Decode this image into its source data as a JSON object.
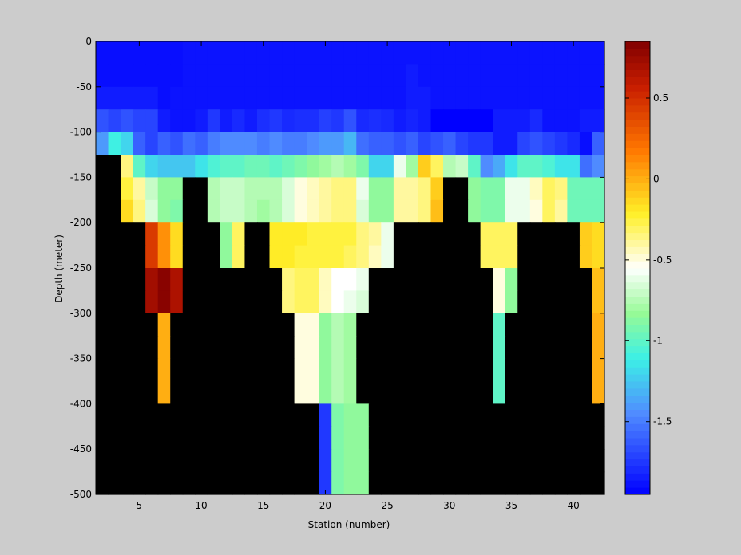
{
  "chart_data": {
    "type": "heatmap",
    "title": "",
    "xlabel": "Station (number)",
    "ylabel": "Depth (meter)",
    "xlim": [
      1.5,
      42.5
    ],
    "ylim": [
      -500,
      0
    ],
    "x_ticks": [
      5,
      10,
      15,
      20,
      25,
      30,
      35,
      40
    ],
    "y_ticks": [
      0,
      -50,
      -100,
      -150,
      -200,
      -250,
      -300,
      -350,
      -400,
      -450,
      -500
    ],
    "colorbar": {
      "range": [
        -1.95,
        0.85
      ],
      "ticks": [
        0.5,
        0,
        -0.5,
        -1,
        -1.5
      ],
      "colormap": "jet-white"
    },
    "missing_color": "#000000",
    "stations": [
      2,
      3,
      4,
      5,
      6,
      7,
      8,
      9,
      10,
      11,
      12,
      13,
      14,
      15,
      16,
      17,
      18,
      19,
      20,
      21,
      22,
      23,
      24,
      25,
      26,
      27,
      28,
      29,
      30,
      31,
      32,
      33,
      34,
      35,
      36,
      37,
      38,
      39,
      40,
      41,
      42
    ],
    "depths": [
      -12.5,
      -37.5,
      -62.5,
      -87.5,
      -112.5,
      -137.5,
      -162.5,
      -187.5,
      -212.5,
      -237.5,
      -262.5,
      -287.5,
      -312.5,
      -337.5,
      -362.5,
      -387.5,
      -412.5,
      -437.5,
      -462.5,
      -487.5
    ],
    "values": [
      [
        -1.9,
        -1.9,
        -1.9,
        -1.9,
        -1.9,
        -1.9,
        -1.9,
        -1.88,
        -1.88,
        -1.88,
        -1.88,
        -1.88,
        -1.88,
        -1.88,
        -1.88,
        -1.88,
        -1.88,
        -1.88,
        -1.88,
        -1.88,
        -1.88,
        -1.88,
        -1.88,
        -1.88,
        -1.88,
        -1.88,
        -1.88,
        -1.88,
        -1.88,
        -1.88,
        -1.88,
        -1.88,
        -1.88,
        -1.88,
        -1.88,
        -1.88,
        -1.88,
        -1.88,
        -1.88,
        -1.88,
        -1.88
      ],
      [
        -1.9,
        -1.9,
        -1.9,
        -1.9,
        -1.9,
        -1.9,
        -1.9,
        -1.88,
        -1.88,
        -1.88,
        -1.88,
        -1.88,
        -1.88,
        -1.88,
        -1.88,
        -1.88,
        -1.88,
        -1.88,
        -1.88,
        -1.88,
        -1.88,
        -1.88,
        -1.88,
        -1.88,
        -1.88,
        -1.85,
        -1.88,
        -1.88,
        -1.88,
        -1.88,
        -1.88,
        -1.88,
        -1.88,
        -1.88,
        -1.88,
        -1.88,
        -1.88,
        -1.88,
        -1.88,
        -1.88,
        -1.88
      ],
      [
        -1.85,
        -1.85,
        -1.85,
        -1.85,
        -1.85,
        -1.9,
        -1.88,
        -1.88,
        -1.88,
        -1.88,
        -1.88,
        -1.88,
        -1.88,
        -1.88,
        -1.88,
        -1.88,
        -1.88,
        -1.88,
        -1.88,
        -1.88,
        -1.88,
        -1.88,
        -1.88,
        -1.88,
        -1.88,
        -1.85,
        -1.85,
        -1.88,
        -1.88,
        -1.88,
        -1.88,
        -1.88,
        -1.88,
        -1.88,
        -1.88,
        -1.88,
        -1.88,
        -1.88,
        -1.88,
        -1.88,
        -1.88
      ],
      [
        -1.65,
        -1.7,
        -1.65,
        -1.7,
        -1.7,
        -1.85,
        -1.88,
        -1.88,
        -1.85,
        -1.75,
        -1.85,
        -1.8,
        -1.85,
        -1.78,
        -1.75,
        -1.8,
        -1.78,
        -1.78,
        -1.72,
        -1.75,
        -1.65,
        -1.8,
        -1.78,
        -1.8,
        -1.85,
        -1.82,
        -1.85,
        -1.95,
        -1.95,
        -1.95,
        -1.95,
        -1.95,
        -1.85,
        -1.85,
        -1.85,
        -1.8,
        -1.88,
        -1.88,
        -1.88,
        -1.85,
        -1.85
      ],
      [
        -1.4,
        -1.1,
        -1.2,
        -1.6,
        -1.7,
        -1.6,
        -1.65,
        -1.55,
        -1.6,
        -1.5,
        -1.45,
        -1.45,
        -1.45,
        -1.5,
        -1.45,
        -1.5,
        -1.5,
        -1.45,
        -1.4,
        -1.4,
        -1.3,
        -1.55,
        -1.6,
        -1.6,
        -1.65,
        -1.6,
        -1.7,
        -1.65,
        -1.6,
        -1.7,
        -1.75,
        -1.75,
        -1.85,
        -1.85,
        -1.7,
        -1.65,
        -1.7,
        -1.75,
        -1.8,
        -1.9,
        -1.6
      ],
      [
        null,
        null,
        -0.35,
        -1.0,
        -1.2,
        -1.25,
        -1.25,
        -1.25,
        -1.15,
        -1.05,
        -1.0,
        -1.0,
        -0.95,
        -0.95,
        -1.0,
        -0.95,
        -0.9,
        -0.85,
        -0.8,
        -0.75,
        -0.8,
        -0.9,
        -1.2,
        -1.2,
        -0.6,
        -0.8,
        -0.1,
        -0.3,
        -0.75,
        -0.7,
        -1.0,
        -1.45,
        -1.35,
        -1.15,
        -1.0,
        -1.0,
        -1.05,
        -1.15,
        -1.15,
        -1.55,
        -1.45
      ],
      [
        null,
        null,
        -0.25,
        -0.4,
        -0.7,
        -0.85,
        -0.85,
        null,
        null,
        -0.75,
        -0.7,
        -0.7,
        -0.75,
        -0.75,
        -0.75,
        -0.65,
        -0.5,
        -0.45,
        -0.4,
        -0.35,
        -0.35,
        -0.6,
        -0.85,
        -0.85,
        -0.4,
        -0.4,
        -0.35,
        -0.1,
        null,
        null,
        -0.85,
        -0.9,
        -0.9,
        -0.6,
        -0.6,
        -0.45,
        -0.3,
        -0.35,
        -0.95,
        -0.95,
        -0.95
      ],
      [
        null,
        null,
        -0.15,
        -0.35,
        -0.65,
        -0.85,
        -0.9,
        null,
        null,
        -0.75,
        -0.7,
        -0.7,
        -0.75,
        -0.8,
        -0.75,
        -0.65,
        -0.5,
        -0.45,
        -0.4,
        -0.35,
        -0.35,
        -0.65,
        -0.85,
        -0.85,
        -0.4,
        -0.4,
        -0.35,
        -0.05,
        null,
        null,
        -0.85,
        -0.9,
        -0.9,
        -0.6,
        -0.6,
        -0.5,
        -0.3,
        -0.4,
        -0.95,
        -0.95,
        -0.95
      ],
      [
        null,
        null,
        null,
        null,
        0.45,
        0.1,
        -0.15,
        null,
        null,
        null,
        -0.85,
        -0.3,
        null,
        null,
        -0.2,
        -0.2,
        -0.2,
        -0.25,
        -0.25,
        -0.25,
        -0.25,
        -0.35,
        -0.4,
        -0.6,
        null,
        null,
        null,
        null,
        null,
        null,
        null,
        -0.3,
        -0.3,
        -0.3,
        null,
        null,
        null,
        null,
        null,
        -0.1,
        -0.15
      ],
      [
        null,
        null,
        null,
        null,
        0.45,
        0.1,
        -0.15,
        null,
        null,
        null,
        -0.85,
        -0.3,
        null,
        null,
        -0.2,
        -0.2,
        -0.25,
        -0.25,
        -0.25,
        -0.25,
        -0.3,
        -0.35,
        -0.45,
        -0.6,
        null,
        null,
        null,
        null,
        null,
        null,
        null,
        -0.3,
        -0.3,
        -0.3,
        null,
        null,
        null,
        null,
        null,
        -0.1,
        -0.15
      ],
      [
        null,
        null,
        null,
        null,
        0.72,
        0.82,
        0.68,
        null,
        null,
        null,
        null,
        null,
        null,
        null,
        null,
        -0.35,
        -0.3,
        -0.3,
        -0.45,
        -0.55,
        -0.55,
        -0.6,
        null,
        null,
        null,
        null,
        null,
        null,
        null,
        null,
        null,
        null,
        -0.5,
        -0.85,
        null,
        null,
        null,
        null,
        null,
        null,
        -0.05
      ],
      [
        null,
        null,
        null,
        null,
        0.72,
        0.82,
        0.68,
        null,
        null,
        null,
        null,
        null,
        null,
        null,
        null,
        -0.35,
        -0.3,
        -0.3,
        -0.45,
        -0.55,
        -0.6,
        -0.65,
        null,
        null,
        null,
        null,
        null,
        null,
        null,
        null,
        null,
        null,
        -0.5,
        -0.85,
        null,
        null,
        null,
        null,
        null,
        null,
        -0.05
      ],
      [
        null,
        null,
        null,
        null,
        null,
        0.0,
        null,
        null,
        null,
        null,
        null,
        null,
        null,
        null,
        null,
        null,
        -0.5,
        -0.5,
        -0.85,
        -0.75,
        -0.8,
        null,
        null,
        null,
        null,
        null,
        null,
        null,
        null,
        null,
        null,
        null,
        -1.0,
        null,
        null,
        null,
        null,
        null,
        null,
        null,
        0.0
      ],
      [
        null,
        null,
        null,
        null,
        null,
        0.0,
        null,
        null,
        null,
        null,
        null,
        null,
        null,
        null,
        null,
        null,
        -0.5,
        -0.5,
        -0.85,
        -0.75,
        -0.8,
        null,
        null,
        null,
        null,
        null,
        null,
        null,
        null,
        null,
        null,
        null,
        -1.0,
        null,
        null,
        null,
        null,
        null,
        null,
        null,
        0.0
      ],
      [
        null,
        null,
        null,
        null,
        null,
        0.0,
        null,
        null,
        null,
        null,
        null,
        null,
        null,
        null,
        null,
        null,
        -0.5,
        -0.5,
        -0.85,
        -0.75,
        -0.8,
        null,
        null,
        null,
        null,
        null,
        null,
        null,
        null,
        null,
        null,
        null,
        -1.0,
        null,
        null,
        null,
        null,
        null,
        null,
        null,
        0.0
      ],
      [
        null,
        null,
        null,
        null,
        null,
        0.0,
        null,
        null,
        null,
        null,
        null,
        null,
        null,
        null,
        null,
        null,
        -0.5,
        -0.5,
        -0.85,
        -0.75,
        -0.8,
        null,
        null,
        null,
        null,
        null,
        null,
        null,
        null,
        null,
        null,
        null,
        -1.0,
        null,
        null,
        null,
        null,
        null,
        null,
        null,
        0.0
      ],
      [
        null,
        null,
        null,
        null,
        null,
        null,
        null,
        null,
        null,
        null,
        null,
        null,
        null,
        null,
        null,
        null,
        null,
        null,
        -1.75,
        -0.9,
        -0.85,
        -0.85,
        null,
        null,
        null,
        null,
        null,
        null,
        null,
        null,
        null,
        null,
        null,
        null,
        null,
        null,
        null,
        null,
        null,
        null,
        null
      ],
      [
        null,
        null,
        null,
        null,
        null,
        null,
        null,
        null,
        null,
        null,
        null,
        null,
        null,
        null,
        null,
        null,
        null,
        null,
        -1.75,
        -0.9,
        -0.85,
        -0.85,
        null,
        null,
        null,
        null,
        null,
        null,
        null,
        null,
        null,
        null,
        null,
        null,
        null,
        null,
        null,
        null,
        null,
        null,
        null
      ],
      [
        null,
        null,
        null,
        null,
        null,
        null,
        null,
        null,
        null,
        null,
        null,
        null,
        null,
        null,
        null,
        null,
        null,
        null,
        -1.75,
        -0.9,
        -0.85,
        -0.85,
        null,
        null,
        null,
        null,
        null,
        null,
        null,
        null,
        null,
        null,
        null,
        null,
        null,
        null,
        null,
        null,
        null,
        null,
        null
      ],
      [
        null,
        null,
        null,
        null,
        null,
        null,
        null,
        null,
        null,
        null,
        null,
        null,
        null,
        null,
        null,
        null,
        null,
        null,
        -1.75,
        -0.9,
        -0.85,
        -0.85,
        null,
        null,
        null,
        null,
        null,
        null,
        null,
        null,
        null,
        null,
        null,
        null,
        null,
        null,
        null,
        null,
        null,
        null,
        null
      ]
    ]
  }
}
